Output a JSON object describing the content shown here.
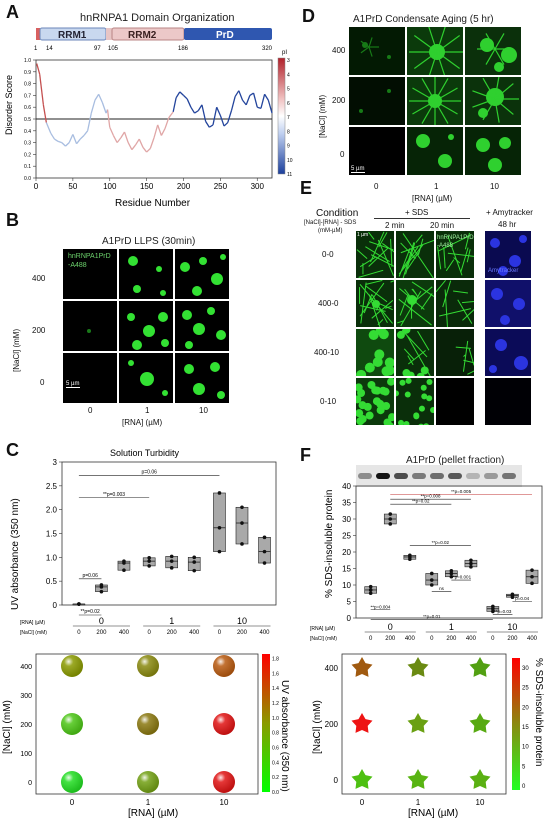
{
  "panels": {
    "a": "A",
    "b": "B",
    "c": "C",
    "d": "D",
    "e": "E",
    "f": "F"
  },
  "A": {
    "title": "hnRNPA1 Domain Organization",
    "domains": [
      "RRM1",
      "RRM2",
      "PrD"
    ],
    "domain_ticks": [
      "1",
      "14",
      "97",
      "105",
      "186",
      "320"
    ],
    "ylabel": "Disorder Score",
    "xlabel": "Residue Number",
    "colorbar_label": "pI",
    "colorbar_ticks": [
      "3",
      "4",
      "5",
      "6",
      "7",
      "8",
      "9",
      "10",
      "11"
    ],
    "chart_data": {
      "type": "line",
      "title": "",
      "xlabel": "Residue Number",
      "ylabel": "Disorder Score",
      "xlim": [
        0,
        320
      ],
      "ylim": [
        0,
        1
      ],
      "x_ticks": [
        "0",
        "50",
        "100",
        "150",
        "200",
        "250",
        "300"
      ],
      "y_ticks": [
        "0.0",
        "0.1",
        "0.2",
        "0.3",
        "0.4",
        "0.5",
        "0.6",
        "0.7",
        "0.8",
        "0.9",
        "1.0"
      ],
      "threshold": 0.5,
      "x": [
        1,
        5,
        10,
        14,
        20,
        25,
        30,
        35,
        40,
        45,
        50,
        55,
        60,
        65,
        70,
        75,
        80,
        85,
        90,
        95,
        97,
        100,
        105,
        110,
        115,
        120,
        125,
        130,
        135,
        140,
        145,
        150,
        155,
        160,
        165,
        170,
        175,
        180,
        186,
        190,
        195,
        200,
        205,
        210,
        215,
        220,
        225,
        230,
        235,
        240,
        245,
        250,
        255,
        260,
        265,
        270,
        275,
        280,
        285,
        290,
        295,
        300,
        305,
        310,
        315,
        320
      ],
      "values": [
        0.97,
        0.88,
        0.62,
        0.47,
        0.38,
        0.33,
        0.31,
        0.3,
        0.27,
        0.3,
        0.37,
        0.29,
        0.33,
        0.36,
        0.4,
        0.55,
        0.66,
        0.71,
        0.64,
        0.55,
        0.58,
        0.43,
        0.36,
        0.3,
        0.34,
        0.39,
        0.3,
        0.24,
        0.28,
        0.33,
        0.26,
        0.22,
        0.25,
        0.34,
        0.45,
        0.36,
        0.42,
        0.51,
        0.56,
        0.68,
        0.73,
        0.7,
        0.67,
        0.6,
        0.55,
        0.57,
        0.62,
        0.48,
        0.43,
        0.45,
        0.6,
        0.53,
        0.44,
        0.47,
        0.57,
        0.69,
        0.74,
        0.66,
        0.62,
        0.7,
        0.72,
        0.6,
        0.59,
        0.71,
        0.66,
        0.55
      ]
    }
  },
  "B": {
    "title": "A1PrD LLPS (30min)",
    "overlay": "hnRNPA1PrD",
    "overlay2": "-A488",
    "ylabel": "[NaCl] (mM)",
    "xlabel": "[RNA] (µM)",
    "rows": [
      "400",
      "200",
      "0"
    ],
    "cols": [
      "0",
      "1",
      "10"
    ],
    "scale": "5 µm"
  },
  "C": {
    "title": "Solution Turbidity",
    "ylabel": "UV absorbance (350 nm)",
    "table_rna_label": "[RNA] (µM)",
    "table_nacl_label": "[NaCl] (mM)",
    "rna_groups": [
      "0",
      "1",
      "10"
    ],
    "nacl": [
      "0",
      "200",
      "400",
      "0",
      "200",
      "400",
      "0",
      "200",
      "400"
    ],
    "sig": [
      "p=0.06",
      "**p=0.003",
      "p=0.06",
      "**p=0.02"
    ],
    "chart_data": {
      "type": "box",
      "title": "Solution Turbidity",
      "ylabel": "UV absorbance (350 nm)",
      "ylim": [
        0,
        3
      ],
      "y_ticks": [
        "0",
        "0.5",
        "1.0",
        "1.5",
        "2.0",
        "2.5",
        "3"
      ],
      "categories": [
        "0-0",
        "0-200",
        "0-400",
        "1-0",
        "1-200",
        "1-400",
        "10-0",
        "10-200",
        "10-400"
      ],
      "values": [
        [
          0.02,
          0.02,
          0.02
        ],
        [
          0.28,
          0.38,
          0.42
        ],
        [
          0.73,
          0.88,
          0.92
        ],
        [
          0.82,
          0.92,
          0.99
        ],
        [
          0.78,
          0.92,
          1.02
        ],
        [
          0.72,
          0.9,
          1.0
        ],
        [
          1.12,
          1.62,
          2.35
        ],
        [
          1.28,
          1.72,
          2.05
        ],
        [
          0.88,
          1.12,
          1.42
        ]
      ]
    }
  },
  "Cmap": {
    "xlabel": "[RNA] (µM)",
    "ylabel": "[NaCl] (mM)",
    "x_ticks": [
      "0",
      "1",
      "10"
    ],
    "y_ticks": [
      "0",
      "100",
      "200",
      "300",
      "400"
    ],
    "cbar_label": "UV absorbance (350 nm)",
    "cbar_ticks": [
      "0.0",
      "0.2",
      "0.4",
      "0.6",
      "0.8",
      "1.0",
      "1.2",
      "1.4",
      "1.6",
      "1.8"
    ],
    "colors": {
      "r400": [
        "#8a9a00",
        "#8a8a10",
        "#b85a10"
      ],
      "r200": [
        "#4cc616",
        "#8a7810",
        "#e01414"
      ],
      "r0": [
        "#22dd22",
        "#72a014",
        "#e01414"
      ]
    }
  },
  "D": {
    "title": "A1PrD Condensate Aging (5 hr)",
    "ylabel": "[NaCl] (mM)",
    "xlabel": "[RNA] (µM)",
    "rows": [
      "400",
      "200",
      "0"
    ],
    "cols": [
      "0",
      "1",
      "10"
    ],
    "scale": "5 µm"
  },
  "E": {
    "condition": "Condition",
    "cond_sub": "[NaCl]-[RNA] - SDS",
    "cond_sub2": "(mM-µM)",
    "sds_head": "+ SDS",
    "t2": "2 min",
    "t20": "20 min",
    "amy_head": "+ Amytracker",
    "amy_time": "48 hr",
    "rows": [
      "0-0",
      "400-0",
      "400-10",
      "0-10"
    ],
    "overlay": "hnRNPA1PrD",
    "overlay2": "-A488",
    "amy_overlay": "Amytracker",
    "scale": "1 µm"
  },
  "F": {
    "gel_title": "A1PrD (pellet fraction)",
    "ylabel": "% SDS-insoluble protein",
    "table_rna_label": "[RNA] (µM)",
    "table_nacl_label": "[NaCl] (mM)",
    "rna_groups": [
      "0",
      "1",
      "10"
    ],
    "nacl": [
      "0",
      "200",
      "400",
      "0",
      "200",
      "400",
      "0",
      "200",
      "400"
    ],
    "sig": [
      "**p=0.005",
      "**p=0.008",
      "**p=0.02",
      "**p=0.02",
      "**p=0.004",
      "ns",
      "**p=0.001",
      "**p=0.01",
      "**p=0.03",
      "p=0.04"
    ],
    "chart_data": {
      "type": "box",
      "ylabel": "% SDS-insoluble protein",
      "ylim": [
        0,
        40
      ],
      "y_ticks": [
        "0",
        "5",
        "10",
        "15",
        "20",
        "25",
        "30",
        "35",
        "40"
      ],
      "categories": [
        "0-0",
        "0-200",
        "0-400",
        "1-0",
        "1-200",
        "1-400",
        "10-0",
        "10-200",
        "10-400"
      ],
      "values": [
        [
          7.5,
          8.5,
          9.5
        ],
        [
          28.5,
          30.0,
          31.5
        ],
        [
          17.8,
          18.5,
          19.0
        ],
        [
          10.0,
          11.5,
          13.5
        ],
        [
          12.5,
          13.5,
          14.3
        ],
        [
          15.5,
          16.5,
          17.5
        ],
        [
          2.0,
          2.8,
          3.5
        ],
        [
          6.3,
          6.8,
          7.2
        ],
        [
          10.5,
          12.5,
          14.5
        ]
      ]
    }
  },
  "Fmap": {
    "xlabel": "[RNA] (µM)",
    "ylabel": "[NaCl] (mM)",
    "x_ticks": [
      "0",
      "1",
      "10"
    ],
    "y_ticks": [
      "0",
      "200",
      "400"
    ],
    "cbar_label": "% SDS-insoluble protein",
    "cbar_ticks": [
      "0",
      "5",
      "10",
      "15",
      "20",
      "25",
      "30"
    ],
    "colors": {
      "r400": [
        "#a05a10",
        "#6a8a12",
        "#52a012"
      ],
      "r200": [
        "#ee1414",
        "#6aa012",
        "#58aa12"
      ],
      "r0": [
        "#4ec012",
        "#58b412",
        "#5ab012"
      ]
    }
  }
}
